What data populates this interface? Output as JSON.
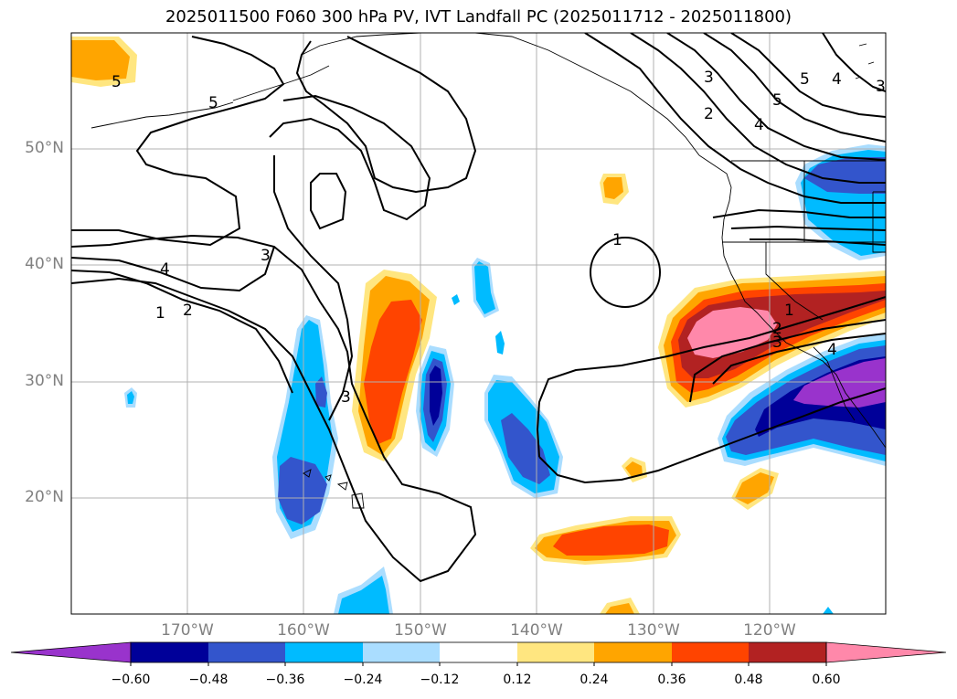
{
  "title": "2025011500 F060 300 hPa PV, IVT Landfall PC (2025011712 - 2025011800)",
  "map": {
    "lat_labels": [
      "50°N",
      "40°N",
      "30°N",
      "20°N"
    ],
    "lon_labels": [
      "170°W",
      "160°W",
      "150°W",
      "140°W",
      "130°W",
      "120°W"
    ],
    "contour_labels": [
      "5",
      "5",
      "4",
      "3",
      "1",
      "2",
      "3",
      "1",
      "3",
      "2",
      "4",
      "5",
      "3",
      "4",
      "5",
      "1",
      "2",
      "3",
      "4"
    ]
  },
  "colorbar": {
    "colors": [
      "#9933cc",
      "#000099",
      "#3355cc",
      "#00bbff",
      "#aaddff",
      "#ffffff",
      "#ffe680",
      "#ffa500",
      "#ff4400",
      "#b22222",
      "#ff88aa"
    ],
    "tick_labels": [
      "−0.60",
      "−0.48",
      "−0.36",
      "−0.24",
      "−0.12",
      "0.12",
      "0.24",
      "0.36",
      "0.48",
      "0.60"
    ]
  }
}
